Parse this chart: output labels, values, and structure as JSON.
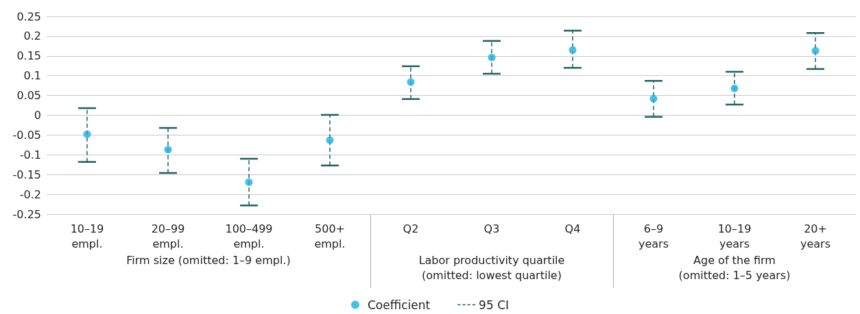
{
  "chart_data": {
    "type": "scatter",
    "categories": [
      "10–19\nempl.",
      "20–99\nempl.",
      "100–499\nempl.",
      "500+\nempl.",
      "Q2",
      "Q3",
      "Q4",
      "6–9\nyears",
      "10–19\nyears",
      "20+\nyears"
    ],
    "series": [
      {
        "name": "Coefficient",
        "color": "#1aafe0",
        "values": [
          -0.048,
          -0.087,
          -0.169,
          -0.063,
          0.084,
          0.146,
          0.165,
          0.042,
          0.068,
          0.163
        ],
        "errors": [
          [
            -0.118,
            0.018
          ],
          [
            -0.146,
            -0.032
          ],
          [
            -0.228,
            -0.11
          ],
          [
            -0.127,
            0.001
          ],
          [
            0.041,
            0.124
          ],
          [
            0.105,
            0.188
          ],
          [
            0.12,
            0.214
          ],
          [
            -0.004,
            0.087
          ],
          [
            0.027,
            0.11
          ],
          [
            0.117,
            0.208
          ]
        ]
      }
    ],
    "annotations": [
      "Firm size (omitted: 1–9 empl.)",
      "Labor productivity quartile\n(omitted: lowest quartile)",
      "Age of the firm\n(omitted: 1–5 years)",
      "95 CI"
    ],
    "ylim": [
      -0.25,
      0.25
    ],
    "yticks": [
      -0.25,
      -0.2,
      -0.15,
      -0.1,
      -0.05,
      0,
      0.05,
      0.1,
      0.15,
      0.2,
      0.25
    ],
    "grid": "y",
    "legend": "bottom",
    "marker": "circle",
    "line_style": "dashed"
  }
}
